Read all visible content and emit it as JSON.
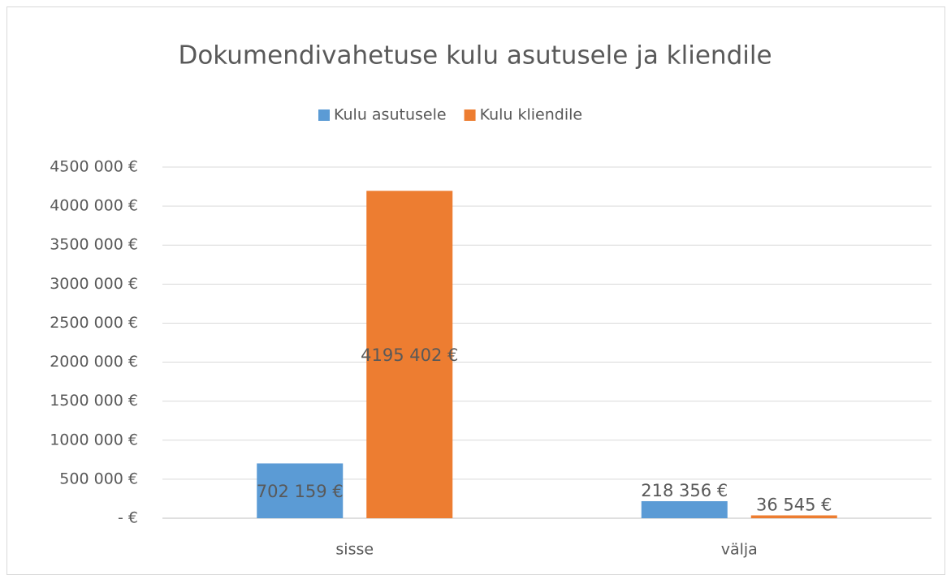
{
  "chart_data": {
    "type": "bar",
    "title": "Dokumendivahetuse kulu asutusele ja kliendile",
    "categories": [
      "sisse",
      "välja"
    ],
    "series": [
      {
        "name": "Kulu asutusele",
        "color": "#5b9bd5",
        "values": [
          702159,
          218356
        ],
        "value_labels": [
          "702 159 €",
          "218 356 €"
        ]
      },
      {
        "name": "Kulu kliendile",
        "color": "#ed7d31",
        "values": [
          4195402,
          36545
        ],
        "value_labels": [
          "4195 402 €",
          "36 545 €"
        ]
      }
    ],
    "ylim": [
      0,
      4500000
    ],
    "yticks": [
      {
        "value": 0,
        "label": "-  €"
      },
      {
        "value": 500000,
        "label": "500 000 €"
      },
      {
        "value": 1000000,
        "label": "1000 000 €"
      },
      {
        "value": 1500000,
        "label": "1500 000 €"
      },
      {
        "value": 2000000,
        "label": "2000 000 €"
      },
      {
        "value": 2500000,
        "label": "2500 000 €"
      },
      {
        "value": 3000000,
        "label": "3000 000 €"
      },
      {
        "value": 3500000,
        "label": "3500 000 €"
      },
      {
        "value": 4000000,
        "label": "4000 000 €"
      },
      {
        "value": 4500000,
        "label": "4500 000 €"
      }
    ],
    "grid": true,
    "legend": "top"
  }
}
